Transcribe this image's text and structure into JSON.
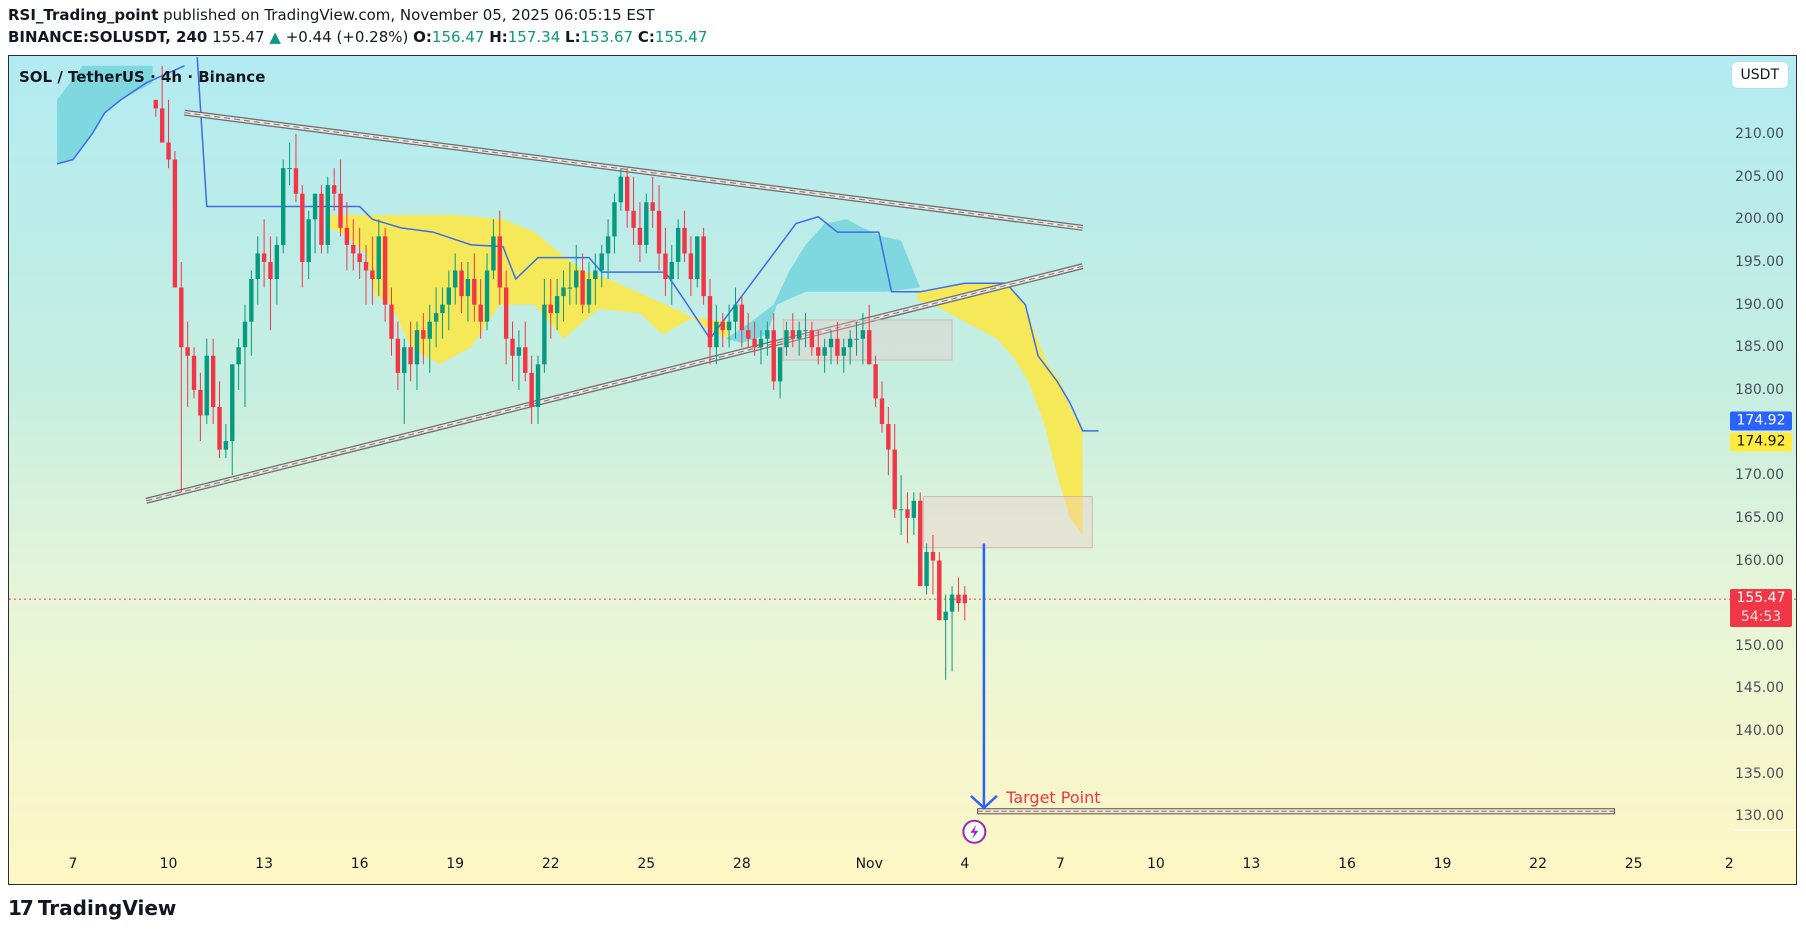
{
  "header": {
    "author": "RSI_Trading_point",
    "published_text": "published on TradingView.com, November 05, 2025 06:05:15 EST",
    "symbol": "BINANCE:SOLUSDT, 240",
    "last": "155.47",
    "change": "+0.44 (+0.28%)",
    "o_label": "O:",
    "o": "156.47",
    "h_label": "H:",
    "h": "157.34",
    "l_label": "L:",
    "l": "153.67",
    "c_label": "C:",
    "c": "155.47",
    "up_arrow": "▲"
  },
  "legend": "SOL / TetherUS · 4h · Binance",
  "unit_button": "USDT",
  "footer": {
    "brand": "TradingView",
    "logo": "17"
  },
  "colors": {
    "up": "#089981",
    "down": "#f23645",
    "cloud_bull": "#7fd8df",
    "cloud_bear": "#f5e95a",
    "span_a": "#f5e95a",
    "span_b": "#3d6ee8",
    "arrow": "#2962ff",
    "target": "#f23645"
  },
  "badges": [
    {
      "label": "174.92",
      "price": 176.3,
      "bg": "#2962ff",
      "fg": "#ffffff"
    },
    {
      "label": "174.92",
      "price": 173.9,
      "bg": "#ffeb3b",
      "fg": "#131722"
    },
    {
      "label": "155.47",
      "price": 155.47,
      "bg": "#f23645",
      "fg": "#ffffff",
      "sub": "54:53"
    }
  ],
  "target_label": "Target Point",
  "chart_data": {
    "type": "candlestick",
    "title": "SOL / TetherUS · 4h · Binance",
    "ylabel": "USDT",
    "ylim": [
      126,
      217
    ],
    "y_ticks": [
      "210.00",
      "205.00",
      "200.00",
      "195.00",
      "190.00",
      "185.00",
      "180.00",
      "170.00",
      "165.00",
      "160.00",
      "150.00",
      "145.00",
      "140.00",
      "135.00",
      "130.00"
    ],
    "x_ticks": [
      "7",
      "10",
      "13",
      "16",
      "19",
      "22",
      "25",
      "28",
      "Nov",
      "4",
      "7",
      "10",
      "13",
      "16",
      "19",
      "22",
      "25",
      "2"
    ],
    "last_price": 155.47,
    "countdown": "54:53",
    "annotations": {
      "triangle_upper": [
        [
          10.5,
          212.5
        ],
        [
          38.7,
          199
        ]
      ],
      "triangle_lower": [
        [
          9.3,
          167
        ],
        [
          38.7,
          194.5
        ]
      ],
      "box_1": {
        "x": [
          29.3,
          34.6
        ],
        "y": [
          183.5,
          188.2
        ]
      },
      "box_2": {
        "x": [
          33.7,
          39
        ],
        "y": [
          161.5,
          167.5
        ]
      },
      "arrow": {
        "x": 35.6,
        "from": 162,
        "to": 131
      },
      "target_line": {
        "x": [
          35.4,
          55.4
        ],
        "y": [
          130.3,
          130.9
        ]
      },
      "target_text": "Target Point"
    },
    "candles": [
      [
        9.6,
        214,
        214,
        212,
        213
      ],
      [
        9.8,
        213,
        218,
        209,
        209
      ],
      [
        10.0,
        209,
        214,
        206,
        207
      ],
      [
        10.2,
        207,
        208,
        192,
        192
      ],
      [
        10.4,
        192,
        195,
        168,
        185
      ],
      [
        10.6,
        185,
        188,
        178,
        184
      ],
      [
        10.8,
        184,
        185,
        179,
        180
      ],
      [
        11.0,
        180,
        182,
        174,
        177
      ],
      [
        11.2,
        177,
        186,
        176,
        184
      ],
      [
        11.4,
        184,
        186,
        176,
        178
      ],
      [
        11.6,
        178,
        181,
        172,
        173
      ],
      [
        11.8,
        173,
        176,
        172,
        174
      ],
      [
        12.0,
        174,
        183,
        170,
        183
      ],
      [
        12.2,
        183,
        186,
        180,
        185
      ],
      [
        12.4,
        185,
        190,
        178,
        188
      ],
      [
        12.6,
        188,
        194,
        184,
        193
      ],
      [
        12.8,
        193,
        198,
        190,
        196
      ],
      [
        13.0,
        196,
        200,
        192,
        195
      ],
      [
        13.2,
        195,
        198,
        187,
        193
      ],
      [
        13.4,
        193,
        198,
        190,
        197
      ],
      [
        13.6,
        197,
        207,
        196,
        206
      ],
      [
        13.8,
        206,
        209,
        204,
        206
      ],
      [
        14.0,
        206,
        210,
        202,
        203
      ],
      [
        14.2,
        203,
        204,
        192,
        195
      ],
      [
        14.4,
        195,
        201,
        193,
        200
      ],
      [
        14.6,
        200,
        203,
        196,
        203
      ],
      [
        14.8,
        203,
        204,
        196,
        197
      ],
      [
        15.0,
        197,
        205,
        196,
        204
      ],
      [
        15.2,
        204,
        206,
        201,
        203
      ],
      [
        15.4,
        203,
        207,
        198,
        199
      ],
      [
        15.6,
        199,
        202,
        194,
        197
      ],
      [
        15.8,
        197,
        200,
        194,
        196
      ],
      [
        16.0,
        196,
        199,
        193,
        195
      ],
      [
        16.2,
        195,
        197,
        190,
        194
      ],
      [
        16.4,
        194,
        198,
        190,
        193
      ],
      [
        16.6,
        193,
        200,
        191,
        198
      ],
      [
        16.8,
        198,
        199,
        188,
        190
      ],
      [
        17.0,
        190,
        192,
        184,
        186
      ],
      [
        17.2,
        186,
        188,
        180,
        182
      ],
      [
        17.4,
        182,
        186,
        176,
        185
      ],
      [
        17.6,
        185,
        188,
        181,
        183
      ],
      [
        17.8,
        183,
        188,
        180,
        187
      ],
      [
        18.0,
        187,
        189,
        183,
        186
      ],
      [
        18.2,
        186,
        190,
        182,
        188
      ],
      [
        18.4,
        188,
        192,
        185,
        189
      ],
      [
        18.6,
        189,
        192,
        186,
        190
      ],
      [
        18.8,
        190,
        194,
        187,
        192
      ],
      [
        19.0,
        192,
        196,
        190,
        194
      ],
      [
        19.2,
        194,
        195,
        189,
        191
      ],
      [
        19.4,
        191,
        195,
        188,
        193
      ],
      [
        19.6,
        193,
        196,
        188,
        190
      ],
      [
        19.8,
        190,
        193,
        186,
        188
      ],
      [
        20.0,
        188,
        196,
        187,
        194
      ],
      [
        20.2,
        194,
        200,
        193,
        198
      ],
      [
        20.4,
        198,
        201,
        190,
        192
      ],
      [
        20.6,
        192,
        194,
        183,
        186
      ],
      [
        20.8,
        186,
        188,
        181,
        184
      ],
      [
        21.0,
        184,
        187,
        180,
        185
      ],
      [
        21.2,
        185,
        188,
        181,
        182
      ],
      [
        21.4,
        182,
        184,
        176,
        178
      ],
      [
        21.6,
        178,
        184,
        176,
        183
      ],
      [
        21.8,
        183,
        193,
        182,
        190
      ],
      [
        22.0,
        190,
        193,
        186,
        189
      ],
      [
        22.2,
        189,
        193,
        187,
        191
      ],
      [
        22.4,
        191,
        194,
        188,
        192
      ],
      [
        22.6,
        192,
        195,
        190,
        192
      ],
      [
        22.8,
        192,
        197,
        190,
        194
      ],
      [
        23.0,
        194,
        196,
        189,
        190
      ],
      [
        23.2,
        190,
        195,
        189,
        193
      ],
      [
        23.4,
        193,
        196,
        190,
        194
      ],
      [
        23.6,
        194,
        197,
        192,
        196
      ],
      [
        23.8,
        196,
        200,
        193,
        198
      ],
      [
        24.0,
        198,
        203,
        196,
        202
      ],
      [
        24.2,
        202,
        206,
        201,
        205
      ],
      [
        24.4,
        205,
        206,
        199,
        201
      ],
      [
        24.6,
        201,
        205,
        197,
        199
      ],
      [
        24.8,
        199,
        202,
        195,
        197
      ],
      [
        25.0,
        197,
        203,
        196,
        202
      ],
      [
        25.2,
        202,
        205,
        199,
        201
      ],
      [
        25.4,
        201,
        204,
        194,
        196
      ],
      [
        25.6,
        196,
        199,
        191,
        193
      ],
      [
        25.8,
        193,
        197,
        190,
        195
      ],
      [
        26.0,
        195,
        200,
        193,
        199
      ],
      [
        26.2,
        199,
        201,
        195,
        196
      ],
      [
        26.4,
        196,
        198,
        191,
        193
      ],
      [
        26.6,
        193,
        198,
        192,
        198
      ],
      [
        26.8,
        198,
        199,
        190,
        191
      ],
      [
        27.0,
        191,
        193,
        183,
        185
      ],
      [
        27.2,
        185,
        190,
        183,
        188
      ],
      [
        27.4,
        188,
        189,
        185,
        187
      ],
      [
        27.6,
        187,
        190,
        185,
        188
      ],
      [
        27.8,
        188,
        192,
        186,
        190
      ],
      [
        28.0,
        190,
        191,
        185,
        187
      ],
      [
        28.2,
        187,
        189,
        185,
        186
      ],
      [
        28.4,
        186,
        188,
        184,
        185
      ],
      [
        28.6,
        185,
        187,
        183,
        186
      ],
      [
        28.8,
        186,
        188,
        184,
        187
      ],
      [
        29.0,
        187,
        189,
        180,
        181
      ],
      [
        29.2,
        181,
        185,
        179,
        185
      ],
      [
        29.4,
        185,
        188,
        184,
        187
      ],
      [
        29.6,
        187,
        189,
        185,
        186
      ],
      [
        29.8,
        186,
        188,
        184,
        187
      ],
      [
        30.0,
        187,
        189,
        185,
        187
      ],
      [
        30.2,
        187,
        188,
        184,
        185
      ],
      [
        30.4,
        185,
        187,
        183,
        184
      ],
      [
        30.6,
        184,
        186,
        182,
        185
      ],
      [
        30.8,
        185,
        187,
        183,
        186
      ],
      [
        31.0,
        186,
        188,
        183,
        184
      ],
      [
        31.2,
        184,
        186,
        182,
        185
      ],
      [
        31.4,
        185,
        187,
        183,
        186
      ],
      [
        31.6,
        186,
        188,
        184,
        186
      ],
      [
        31.8,
        186,
        189,
        183,
        187
      ],
      [
        32.0,
        187,
        190,
        183,
        183
      ],
      [
        32.2,
        183,
        184,
        178,
        179
      ],
      [
        32.4,
        179,
        181,
        175,
        176
      ],
      [
        32.6,
        176,
        178,
        170,
        173
      ],
      [
        32.8,
        173,
        176,
        165,
        166
      ],
      [
        33.0,
        166,
        170,
        163,
        166
      ],
      [
        33.2,
        166,
        168,
        162,
        165
      ],
      [
        33.4,
        165,
        168,
        163,
        167
      ],
      [
        33.6,
        167,
        168,
        157,
        157
      ],
      [
        33.8,
        157,
        162,
        156,
        161
      ],
      [
        34.0,
        161,
        163,
        156,
        160
      ],
      [
        34.2,
        160,
        161,
        153,
        153
      ],
      [
        34.4,
        153,
        156,
        146,
        154
      ],
      [
        34.6,
        154,
        157,
        147,
        156
      ],
      [
        34.8,
        156,
        158,
        154,
        155
      ],
      [
        35.0,
        156,
        157,
        153,
        155
      ]
    ]
  }
}
